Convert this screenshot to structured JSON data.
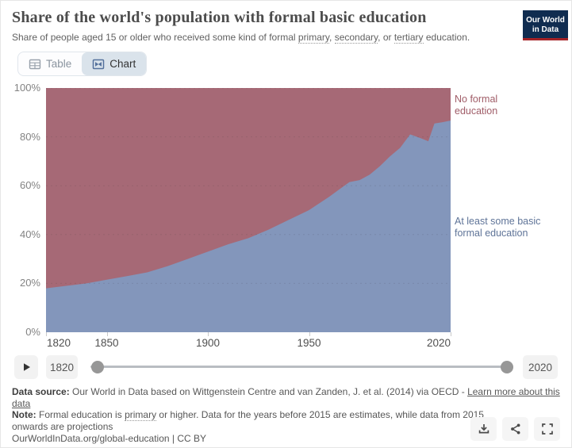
{
  "header": {
    "title": "Share of the world's population with formal basic education",
    "subtitle": {
      "prefix": "Share of people aged 15 or older who received some kind of formal ",
      "term_primary": "primary",
      "sep1": ", ",
      "term_secondary": "secondary",
      "sep2": ", or ",
      "term_tertiary": "tertiary",
      "suffix": " education."
    },
    "logo": {
      "line1": "Our World",
      "line2": "in Data",
      "bg_color": "#102c50",
      "accent_color": "#a52327"
    }
  },
  "tabs": {
    "table_label": "Table",
    "chart_label": "Chart"
  },
  "chart_data": {
    "type": "area",
    "stacked": true,
    "title": "Share of the world's population with formal basic education",
    "xlabel": "",
    "ylabel": "",
    "x_range": [
      1820,
      2020
    ],
    "x_ticks": [
      1820,
      1850,
      1900,
      1950,
      2020
    ],
    "y_ticks": [
      0,
      20,
      40,
      60,
      80,
      100
    ],
    "y_unit": "%",
    "ylim": [
      0,
      100
    ],
    "grid": "horizontal dashed",
    "legend_position": "right-of-plot inline labels",
    "x": [
      1820,
      1830,
      1840,
      1850,
      1860,
      1870,
      1880,
      1890,
      1900,
      1910,
      1920,
      1930,
      1940,
      1950,
      1960,
      1965,
      1970,
      1975,
      1980,
      1985,
      1990,
      1995,
      2000,
      2005,
      2009,
      2012,
      2016,
      2020
    ],
    "series": [
      {
        "name": "At least some basic formal education",
        "color": "#8396bb",
        "label_color": "#5f7498",
        "values": [
          18,
          19,
          20,
          21.5,
          23,
          24.5,
          27,
          30,
          33,
          36,
          38.5,
          42,
          46,
          50,
          55.5,
          58.5,
          61.5,
          62.3,
          64.5,
          68,
          72,
          75.5,
          81,
          79.5,
          78.2,
          85.5,
          86,
          86.7
        ]
      },
      {
        "name": "No formal education",
        "color": "#a66976",
        "label_color": "#a05d68",
        "values": [
          82,
          81,
          80,
          78.5,
          77,
          75.5,
          73,
          70,
          67,
          64,
          61.5,
          58,
          54,
          50,
          44.5,
          41.5,
          38.5,
          37.7,
          35.5,
          32,
          28,
          24.5,
          19,
          20.5,
          21.8,
          14.5,
          14,
          13.3
        ]
      }
    ]
  },
  "timeline": {
    "start_year": "1820",
    "end_year": "2020"
  },
  "footer": {
    "source_label": "Data source:",
    "source_text": " Our World in Data based on Wittgenstein Centre and van Zanden, J. et al. (2014) via OECD - ",
    "source_link": "Learn more about this data",
    "note_label": "Note:",
    "note_pre": " Formal education is ",
    "note_term": "primary",
    "note_post": " or higher. Data for the years before 2015 are estimates, while data from 2015 onwards are projections",
    "citation": "OurWorldInData.org/global-education | CC BY"
  },
  "icons": {
    "table_tab": "table-grid-icon",
    "chart_tab": "area-chart-icon",
    "play": "play-icon",
    "download": "download-icon",
    "share": "share-icon",
    "fullscreen": "fullscreen-icon"
  }
}
